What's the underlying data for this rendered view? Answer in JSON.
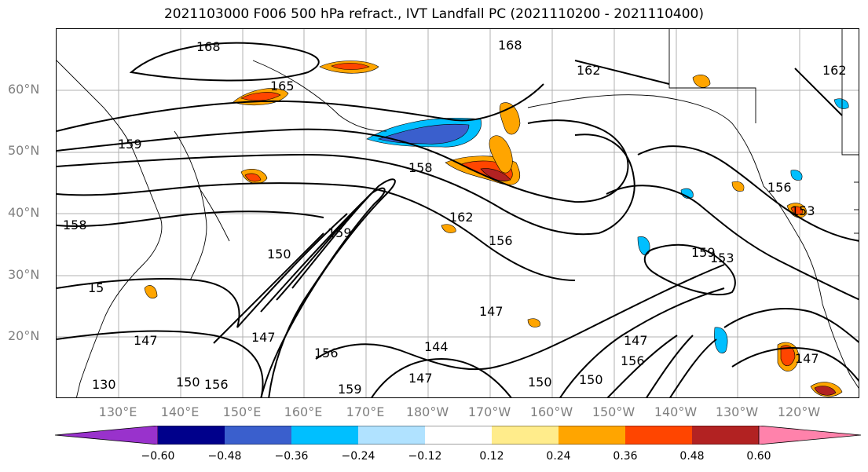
{
  "title": "2021103000 F006 500 hPa refract., IVT Landfall PC (2021110200 - 2021110400)",
  "map": {
    "projection": "PlateCarree",
    "lon_range": [
      120,
      250
    ],
    "lat_range": [
      10,
      70
    ],
    "grid": true,
    "fill_variable": "IVT Landfall PC (filled)",
    "contour_variable": "500 hPa refractivity (black contours)",
    "lat_labels": [
      "60°N",
      "50°N",
      "40°N",
      "30°N",
      "20°N"
    ],
    "lon_labels": [
      "130°E",
      "140°E",
      "150°E",
      "160°E",
      "170°E",
      "180°W",
      "170°W",
      "160°W",
      "150°W",
      "140°W",
      "130°W",
      "120°W"
    ],
    "contour_labels": [
      "168",
      "168",
      "165",
      "162",
      "162",
      "159",
      "158",
      "156",
      "156",
      "153",
      "153",
      "150",
      "150",
      "147",
      "147",
      "147",
      "147",
      "147",
      "144",
      "159",
      "159",
      "156",
      "156",
      "150",
      "150",
      "162",
      "156",
      "158",
      "159",
      "130",
      "147",
      "15"
    ]
  },
  "colorbar": {
    "ticks": [
      "−0.60",
      "−0.48",
      "−0.36",
      "−0.24",
      "−0.12",
      "0.12",
      "0.24",
      "0.36",
      "0.48",
      "0.60"
    ],
    "colors": [
      "#9932cc",
      "#00008b",
      "#3a5fcd",
      "#00bfff",
      "#b0e2ff",
      "#ffffff",
      "#ffec8b",
      "#ffa500",
      "#ff4500",
      "#b22222",
      "#ff82ab"
    ],
    "extend": "both"
  }
}
